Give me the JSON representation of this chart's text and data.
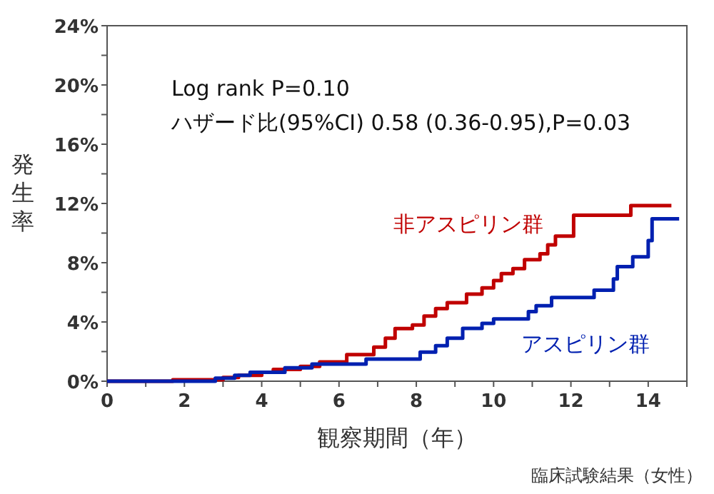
{
  "chart_data": {
    "type": "step",
    "xlabel": "観察期間（年）",
    "ylabel": "発生率",
    "annotations": [
      "Log rank P=0.10",
      "ハザード比(95%CI) 0.58 (0.36-0.95),P=0.03",
      "臨床試験結果（女性）"
    ],
    "xlim": [
      0,
      15
    ],
    "ylim": [
      0,
      24
    ],
    "xticks": [
      0,
      {
        "value": 1,
        "label": null
      },
      2,
      {
        "value": 3,
        "label": null
      },
      4,
      {
        "value": 5,
        "label": null
      },
      6,
      {
        "value": 7,
        "label": null
      },
      8,
      {
        "value": 9,
        "label": null
      },
      10,
      {
        "value": 11,
        "label": null
      },
      12,
      {
        "value": 13,
        "label": null
      },
      14,
      {
        "value": 15,
        "label": null
      }
    ],
    "yticks": [
      {
        "value": 0,
        "label": "0%"
      },
      {
        "value": 2,
        "label": null
      },
      {
        "value": 4,
        "label": "4%"
      },
      {
        "value": 6,
        "label": null
      },
      {
        "value": 8,
        "label": "8%"
      },
      {
        "value": 10,
        "label": null
      },
      {
        "value": 12,
        "label": "12%"
      },
      {
        "value": 14,
        "label": null
      },
      {
        "value": 16,
        "label": "16%"
      },
      {
        "value": 18,
        "label": null
      },
      {
        "value": 20,
        "label": "20%"
      },
      {
        "value": 22,
        "label": null
      },
      {
        "value": 24,
        "label": "24%"
      }
    ],
    "grid": false,
    "legend": false,
    "marker": "none",
    "line_style": "solid",
    "series": [
      {
        "name": "非アスピリン群",
        "color": "#c00000",
        "x": [
          0,
          1.7,
          3.0,
          3.4,
          4.0,
          4.3,
          5.0,
          5.5,
          6.2,
          6.9,
          7.2,
          7.45,
          7.9,
          8.2,
          8.5,
          8.8,
          9.3,
          9.7,
          10.0,
          10.2,
          10.5,
          10.8,
          11.2,
          11.4,
          11.6,
          12.07,
          13.55,
          14.6
        ],
        "values": [
          0,
          0.1,
          0.25,
          0.4,
          0.6,
          0.8,
          1.0,
          1.3,
          1.8,
          2.3,
          2.9,
          3.56,
          3.8,
          4.4,
          4.9,
          5.3,
          5.88,
          6.3,
          6.8,
          7.26,
          7.6,
          8.2,
          8.6,
          9.2,
          9.8,
          11.2,
          11.86,
          11.86
        ]
      },
      {
        "name": "アスピリン群",
        "color": "#0020b0",
        "x": [
          0,
          2.8,
          3.3,
          3.7,
          4.6,
          5.3,
          6.7,
          8.1,
          8.5,
          8.8,
          9.2,
          9.7,
          10.0,
          10.9,
          11.1,
          11.5,
          12.6,
          13.1,
          13.2,
          13.6,
          14.0,
          14.1,
          14.8
        ],
        "values": [
          0,
          0.2,
          0.4,
          0.6,
          0.9,
          1.16,
          1.5,
          1.96,
          2.4,
          2.9,
          3.57,
          3.9,
          4.2,
          4.7,
          5.1,
          5.65,
          6.14,
          6.9,
          7.74,
          8.4,
          9.5,
          10.96,
          10.96
        ]
      }
    ]
  }
}
